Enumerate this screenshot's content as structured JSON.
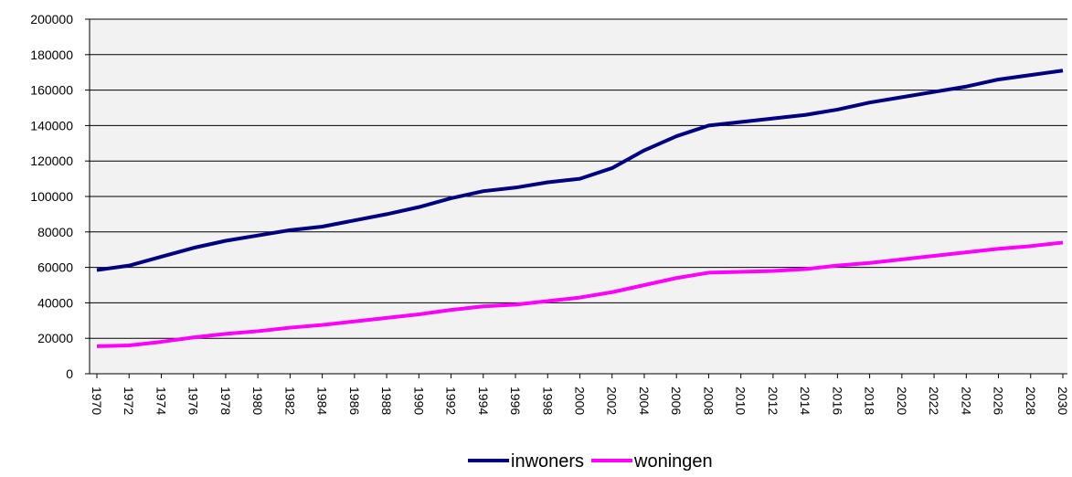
{
  "chart_data": {
    "type": "line",
    "x": [
      1970,
      1972,
      1974,
      1976,
      1978,
      1980,
      1982,
      1984,
      1986,
      1988,
      1990,
      1992,
      1994,
      1996,
      1998,
      2000,
      2002,
      2004,
      2006,
      2008,
      2010,
      2012,
      2014,
      2016,
      2018,
      2020,
      2022,
      2024,
      2026,
      2028,
      2030
    ],
    "series": [
      {
        "name": "inwoners",
        "color": "#000080",
        "values": [
          58500,
          61000,
          66000,
          71000,
          75000,
          78000,
          81000,
          83000,
          86500,
          90000,
          94000,
          99000,
          103000,
          105000,
          108000,
          110000,
          116000,
          126000,
          134000,
          140000,
          142000,
          144000,
          146000,
          149000,
          153000,
          156000,
          159000,
          162000,
          166000,
          168500,
          171000
        ]
      },
      {
        "name": "woningen",
        "color": "#ff00ff",
        "values": [
          15500,
          16000,
          18000,
          20500,
          22500,
          24000,
          26000,
          27500,
          29500,
          31500,
          33500,
          36000,
          38000,
          39000,
          41000,
          43000,
          46000,
          50000,
          54000,
          57000,
          57500,
          58000,
          59000,
          61000,
          62500,
          64500,
          66500,
          68500,
          70500,
          72000,
          74000
        ]
      }
    ],
    "xlim": [
      1970,
      2030
    ],
    "xticks": [
      1970,
      1972,
      1974,
      1976,
      1978,
      1980,
      1982,
      1984,
      1986,
      1988,
      1990,
      1992,
      1994,
      1996,
      1998,
      2000,
      2002,
      2004,
      2006,
      2008,
      2010,
      2012,
      2014,
      2016,
      2018,
      2020,
      2022,
      2024,
      2026,
      2028,
      2030
    ],
    "ylim": [
      0,
      200000
    ],
    "yticks": [
      0,
      20000,
      40000,
      60000,
      80000,
      100000,
      120000,
      140000,
      160000,
      180000,
      200000
    ],
    "grid": true,
    "legend": "bottom"
  }
}
